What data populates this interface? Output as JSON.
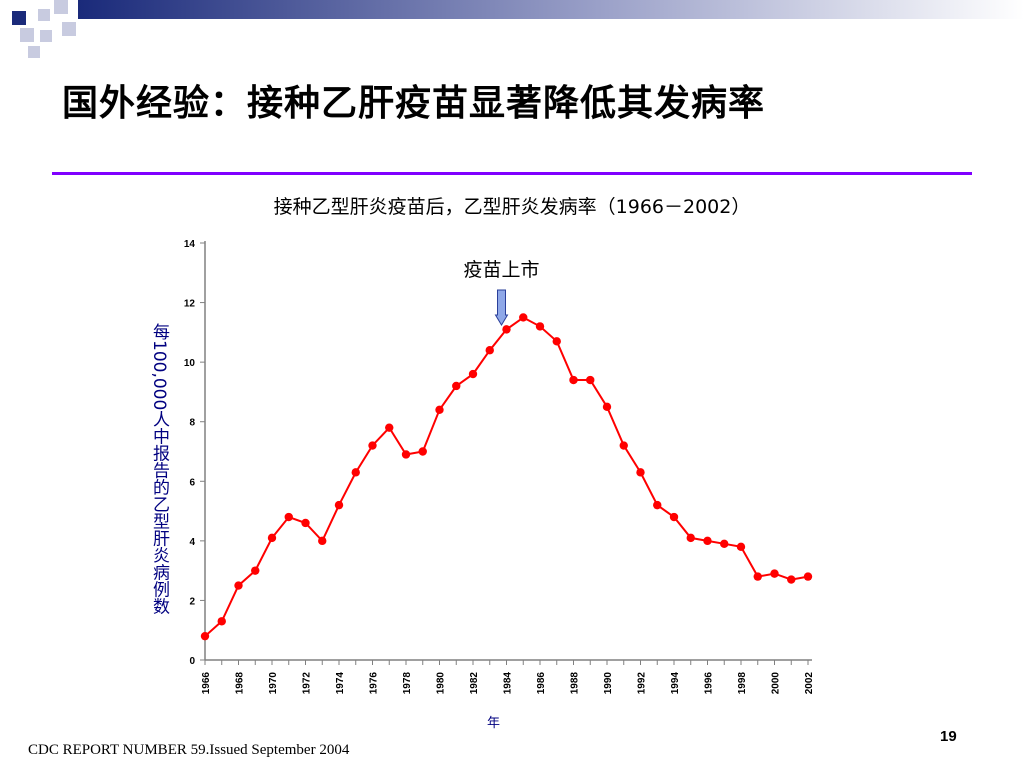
{
  "slide": {
    "title": "国外经验：接种乙肝疫苗显著降低其发病率",
    "footer": "CDC REPORT NUMBER 59.Issued September 2004",
    "page_number": "19"
  },
  "colors": {
    "accent_rule": "#8000ff",
    "series": "#ff0000",
    "axis_label": "#000080",
    "arrow_fill": "#8fa8e8",
    "header_gradient_end": "#1a2a7a"
  },
  "chart_data": {
    "type": "line",
    "title": "接种乙型肝炎疫苗后，乙型肝炎发病率（1966－2002）",
    "xlabel": "年",
    "ylabel": "每100,000人中报告的乙型肝炎病例数",
    "ylim": [
      0,
      14
    ],
    "yticks": [
      "0",
      "2",
      "4",
      "6",
      "8",
      "10",
      "12",
      "14"
    ],
    "xlim": [
      1966,
      2002
    ],
    "xticks": [
      "1966",
      "1968",
      "1970",
      "1972",
      "1974",
      "1976",
      "1978",
      "1980",
      "1982",
      "1984",
      "1986",
      "1988",
      "1990",
      "1992",
      "1994",
      "1996",
      "1998",
      "2000",
      "2002"
    ],
    "grid": false,
    "annotation": {
      "text": "疫苗上市",
      "year": 1984
    },
    "series": [
      {
        "x": [
          1966,
          1967,
          1968,
          1969,
          1970,
          1971,
          1972,
          1973,
          1974,
          1975,
          1976,
          1977,
          1978,
          1979,
          1980,
          1981,
          1982,
          1983,
          1984,
          1985,
          1986,
          1987,
          1988,
          1989,
          1990,
          1991,
          1992,
          1993,
          1994,
          1995,
          1996,
          1997,
          1998,
          1999,
          2000,
          2001,
          2002
        ],
        "y": [
          0.8,
          1.3,
          2.5,
          3.0,
          4.1,
          4.8,
          4.6,
          4.0,
          5.2,
          6.3,
          7.2,
          7.8,
          6.9,
          7.0,
          8.4,
          9.2,
          9.6,
          10.4,
          11.1,
          11.5,
          11.2,
          10.7,
          9.4,
          9.4,
          8.5,
          7.2,
          6.3,
          5.2,
          4.8,
          4.1,
          4.0,
          3.9,
          3.8,
          2.8,
          2.9,
          2.7,
          2.8
        ]
      }
    ]
  }
}
